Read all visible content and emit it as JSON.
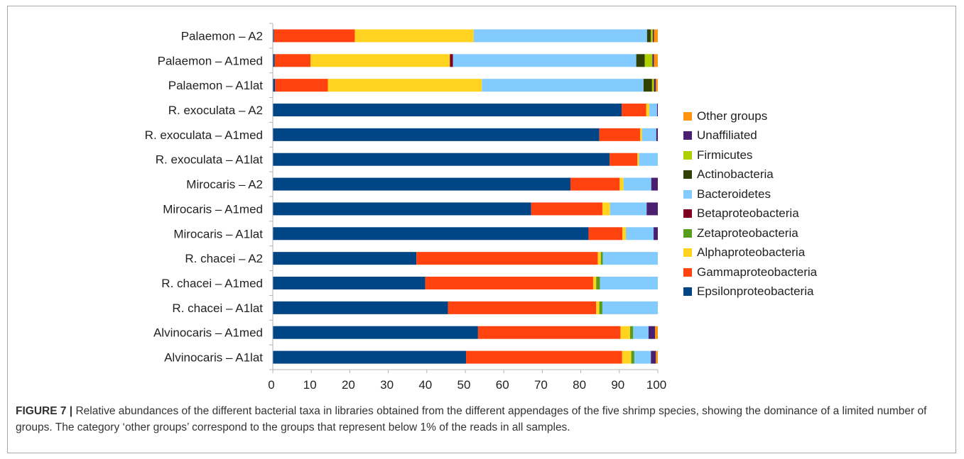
{
  "figure": {
    "label": "FIGURE 7 |",
    "caption": " Relative abundances of the different bacterial taxa in libraries obtained from the different appendages of the five shrimp species, showing the dominance of a limited number of groups. The category ‘other groups’ correspond to the groups that represent below 1% of the reads in all samples."
  },
  "chart_data": {
    "type": "bar",
    "orientation": "horizontal",
    "stacked": true,
    "xlim": [
      0,
      100
    ],
    "x_ticks": [
      "0",
      "10",
      "20",
      "30",
      "40",
      "50",
      "60",
      "70",
      "80",
      "90",
      "100"
    ],
    "grid": false,
    "legend_position": "right",
    "categories": [
      "Palaemon – A2",
      "Palaemon – A1med",
      "Palaemon – A1lat",
      "R. exoculata – A2",
      "R. exoculata – A1med",
      "R. exoculata – A1lat",
      "Mirocaris – A2",
      "Mirocaris – A1med",
      "Mirocaris – A1lat",
      "R. chacei – A2",
      "R. chacei – A1med",
      "R. chacei – A1lat",
      "Alvinocaris – A1med",
      "Alvinocaris – A1lat"
    ],
    "series": [
      {
        "name": "Epsilonproteobacteria",
        "color": "#004586",
        "values": [
          0.3,
          0.5,
          0.6,
          90.6,
          84.8,
          87.5,
          77.3,
          67.1,
          82.0,
          37.3,
          39.6,
          45.5,
          53.3,
          50.2
        ]
      },
      {
        "name": "Gammaproteobacteria",
        "color": "#ff420e",
        "values": [
          21.0,
          9.3,
          13.7,
          6.4,
          10.6,
          7.2,
          12.8,
          18.5,
          8.8,
          47.1,
          43.6,
          38.5,
          37.0,
          40.5
        ]
      },
      {
        "name": "Alphaproteobacteria",
        "color": "#ffd320",
        "values": [
          30.9,
          36.2,
          40.0,
          0.8,
          0.5,
          0.4,
          1.0,
          2.0,
          0.9,
          0.8,
          0.8,
          0.8,
          2.5,
          2.4
        ]
      },
      {
        "name": "Zetaproteobacteria",
        "color": "#579d1c",
        "values": [
          0.0,
          0.0,
          0.0,
          0.0,
          0.0,
          0.0,
          0.0,
          0.0,
          0.0,
          0.5,
          1.0,
          0.8,
          0.8,
          0.8
        ]
      },
      {
        "name": "Betaproteobacteria",
        "color": "#7e0021",
        "values": [
          0.0,
          0.8,
          0.0,
          0.0,
          0.0,
          0.0,
          0.0,
          0.0,
          0.0,
          0.0,
          0.0,
          0.0,
          0.0,
          0.0
        ]
      },
      {
        "name": "Bacteroidetes",
        "color": "#83caff",
        "values": [
          45.0,
          47.6,
          42.0,
          2.0,
          3.7,
          4.9,
          7.2,
          9.5,
          7.2,
          14.3,
          15.0,
          14.4,
          4.0,
          4.3
        ]
      },
      {
        "name": "Actinobacteria",
        "color": "#314004",
        "values": [
          1.0,
          2.2,
          2.2,
          0.0,
          0.0,
          0.0,
          0.0,
          0.0,
          0.0,
          0.0,
          0.0,
          0.0,
          0.0,
          0.0
        ]
      },
      {
        "name": "Firmicutes",
        "color": "#aecf00",
        "values": [
          0.5,
          2.0,
          0.5,
          0.0,
          0.0,
          0.0,
          0.0,
          0.0,
          0.0,
          0.0,
          0.0,
          0.0,
          0.0,
          0.0
        ]
      },
      {
        "name": "Unaffiliated",
        "color": "#4b1f6f",
        "values": [
          0.3,
          0.4,
          0.5,
          0.2,
          0.4,
          0.0,
          1.7,
          2.9,
          1.1,
          0.0,
          0.0,
          0.0,
          1.7,
          1.3
        ]
      },
      {
        "name": "Other groups",
        "color": "#ff950e",
        "values": [
          1.0,
          1.0,
          0.5,
          0.0,
          0.0,
          0.0,
          0.0,
          0.0,
          0.0,
          0.0,
          0.0,
          0.0,
          0.7,
          0.5
        ]
      }
    ]
  }
}
